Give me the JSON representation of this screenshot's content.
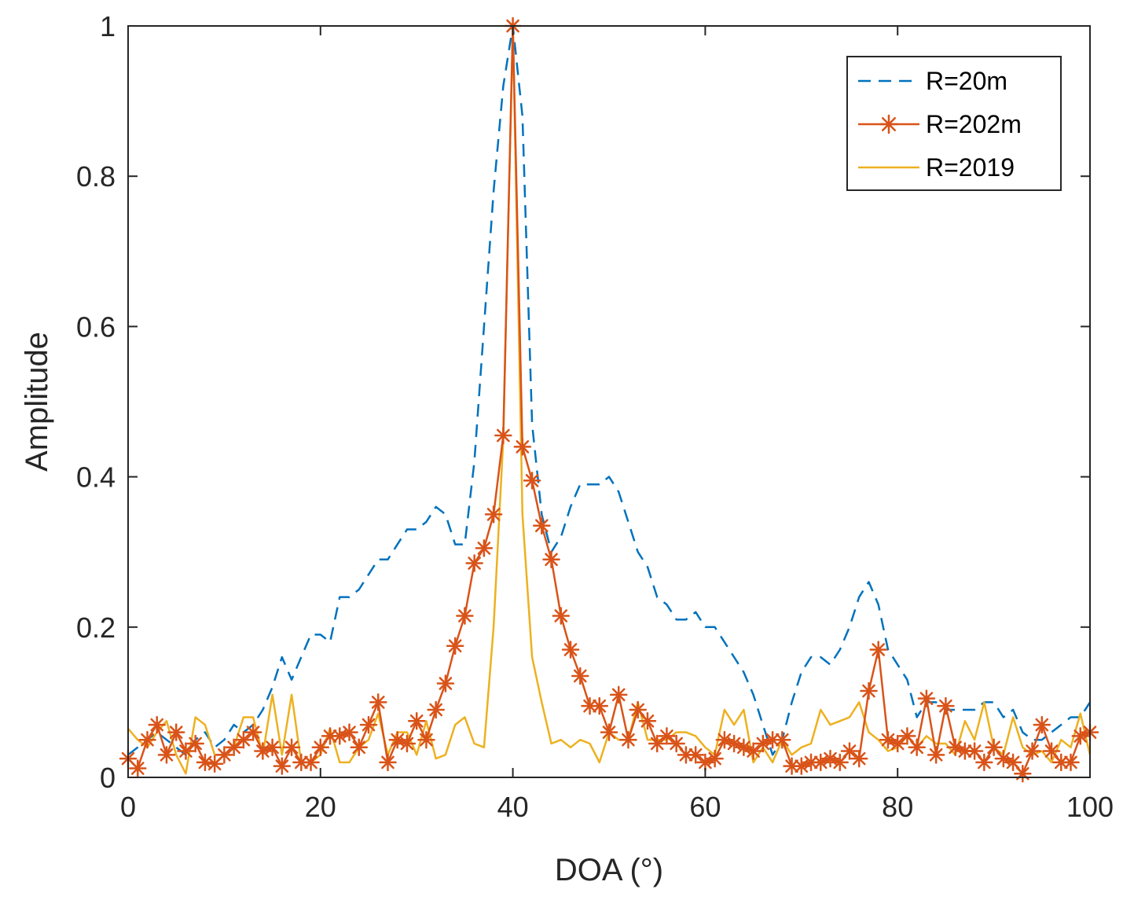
{
  "chart_data": {
    "type": "line",
    "title": "",
    "xlabel": "DOA (°)",
    "ylabel": "Amplitude",
    "xlim": [
      0,
      100
    ],
    "ylim": [
      0,
      1
    ],
    "xticks": [
      0,
      20,
      40,
      60,
      80,
      100
    ],
    "yticks": [
      0,
      0.2,
      0.4,
      0.6,
      0.8,
      1
    ],
    "xtick_labels": [
      "0",
      "20",
      "40",
      "60",
      "80",
      "100"
    ],
    "ytick_labels": [
      "0",
      "0.2",
      "0.4",
      "0.6",
      "0.8",
      "1"
    ],
    "grid": false,
    "legend_position": "top-right",
    "series": [
      {
        "name": "R=20m",
        "color": "#0072BD",
        "line_style": "dashed",
        "marker": "none",
        "x": [
          0,
          1,
          2,
          3,
          4,
          5,
          6,
          7,
          8,
          9,
          10,
          11,
          12,
          13,
          14,
          15,
          16,
          17,
          18,
          19,
          20,
          21,
          22,
          23,
          24,
          25,
          26,
          27,
          28,
          29,
          30,
          31,
          32,
          33,
          34,
          35,
          36,
          37,
          38,
          39,
          40,
          41,
          42,
          43,
          44,
          45,
          46,
          47,
          48,
          49,
          50,
          51,
          52,
          53,
          54,
          55,
          56,
          57,
          58,
          59,
          60,
          61,
          62,
          63,
          64,
          65,
          66,
          67,
          68,
          69,
          70,
          71,
          72,
          73,
          74,
          75,
          76,
          77,
          78,
          79,
          80,
          81,
          82,
          83,
          84,
          85,
          86,
          87,
          88,
          89,
          90,
          91,
          92,
          93,
          94,
          95,
          96,
          97,
          98,
          99,
          100
        ],
        "values": [
          0.03,
          0.04,
          0.05,
          0.06,
          0.05,
          0.04,
          0.03,
          0.05,
          0.06,
          0.04,
          0.05,
          0.07,
          0.06,
          0.07,
          0.09,
          0.12,
          0.16,
          0.13,
          0.16,
          0.19,
          0.19,
          0.18,
          0.24,
          0.24,
          0.25,
          0.27,
          0.29,
          0.29,
          0.31,
          0.33,
          0.33,
          0.34,
          0.36,
          0.35,
          0.31,
          0.31,
          0.42,
          0.6,
          0.78,
          0.92,
          1.0,
          0.88,
          0.47,
          0.35,
          0.3,
          0.32,
          0.36,
          0.39,
          0.39,
          0.39,
          0.4,
          0.38,
          0.34,
          0.3,
          0.28,
          0.24,
          0.23,
          0.21,
          0.21,
          0.22,
          0.2,
          0.2,
          0.18,
          0.16,
          0.14,
          0.11,
          0.07,
          0.03,
          0.05,
          0.1,
          0.14,
          0.16,
          0.16,
          0.15,
          0.17,
          0.2,
          0.24,
          0.26,
          0.23,
          0.17,
          0.15,
          0.13,
          0.08,
          0.1,
          0.1,
          0.09,
          0.09,
          0.09,
          0.09,
          0.1,
          0.1,
          0.08,
          0.09,
          0.06,
          0.05,
          0.05,
          0.06,
          0.07,
          0.08,
          0.08,
          0.1
        ]
      },
      {
        "name": "R=202m",
        "color": "#D95319",
        "line_style": "solid",
        "marker": "asterisk",
        "x": [
          0,
          1,
          2,
          3,
          4,
          5,
          6,
          7,
          8,
          9,
          10,
          11,
          12,
          13,
          14,
          15,
          16,
          17,
          18,
          19,
          20,
          21,
          22,
          23,
          24,
          25,
          26,
          27,
          28,
          29,
          30,
          31,
          32,
          33,
          34,
          35,
          36,
          37,
          38,
          39,
          40,
          41,
          42,
          43,
          44,
          45,
          46,
          47,
          48,
          49,
          50,
          51,
          52,
          53,
          54,
          55,
          56,
          57,
          58,
          59,
          60,
          61,
          62,
          63,
          64,
          65,
          66,
          67,
          68,
          69,
          70,
          71,
          72,
          73,
          74,
          75,
          76,
          77,
          78,
          79,
          80,
          81,
          82,
          83,
          84,
          85,
          86,
          87,
          88,
          89,
          90,
          91,
          92,
          93,
          94,
          95,
          96,
          97,
          98,
          99,
          100
        ],
        "values": [
          0.025,
          0.012,
          0.05,
          0.07,
          0.03,
          0.06,
          0.035,
          0.045,
          0.02,
          0.018,
          0.03,
          0.04,
          0.05,
          0.06,
          0.035,
          0.04,
          0.015,
          0.04,
          0.02,
          0.02,
          0.04,
          0.055,
          0.055,
          0.06,
          0.04,
          0.07,
          0.1,
          0.02,
          0.05,
          0.045,
          0.075,
          0.05,
          0.09,
          0.125,
          0.175,
          0.215,
          0.285,
          0.305,
          0.35,
          0.455,
          1.0,
          0.44,
          0.395,
          0.335,
          0.29,
          0.215,
          0.17,
          0.135,
          0.095,
          0.095,
          0.06,
          0.11,
          0.05,
          0.09,
          0.075,
          0.045,
          0.055,
          0.045,
          0.03,
          0.03,
          0.02,
          0.025,
          0.05,
          0.045,
          0.04,
          0.035,
          0.045,
          0.05,
          0.05,
          0.015,
          0.015,
          0.02,
          0.02,
          0.025,
          0.02,
          0.035,
          0.025,
          0.115,
          0.17,
          0.05,
          0.045,
          0.055,
          0.04,
          0.105,
          0.03,
          0.095,
          0.04,
          0.035,
          0.035,
          0.02,
          0.04,
          0.025,
          0.02,
          0.005,
          0.035,
          0.07,
          0.035,
          0.02,
          0.02,
          0.055,
          0.06
        ]
      },
      {
        "name": "R=2019",
        "color": "#EDB120",
        "line_style": "solid",
        "marker": "none",
        "x": [
          0,
          1,
          2,
          3,
          4,
          5,
          6,
          7,
          8,
          9,
          10,
          11,
          12,
          13,
          14,
          15,
          16,
          17,
          18,
          19,
          20,
          21,
          22,
          23,
          24,
          25,
          26,
          27,
          28,
          29,
          30,
          31,
          32,
          33,
          34,
          35,
          36,
          37,
          38,
          39,
          40,
          41,
          42,
          43,
          44,
          45,
          46,
          47,
          48,
          49,
          50,
          51,
          52,
          53,
          54,
          55,
          56,
          57,
          58,
          59,
          60,
          61,
          62,
          63,
          64,
          65,
          66,
          67,
          68,
          69,
          70,
          71,
          72,
          73,
          74,
          75,
          76,
          77,
          78,
          79,
          80,
          81,
          82,
          83,
          84,
          85,
          86,
          87,
          88,
          89,
          90,
          91,
          92,
          93,
          94,
          95,
          96,
          97,
          98,
          99,
          100
        ],
        "values": [
          0.065,
          0.05,
          0.04,
          0.06,
          0.075,
          0.03,
          0.005,
          0.08,
          0.07,
          0.03,
          0.03,
          0.04,
          0.08,
          0.08,
          0.03,
          0.11,
          0.03,
          0.11,
          0.02,
          0.02,
          0.03,
          0.065,
          0.02,
          0.02,
          0.04,
          0.05,
          0.085,
          0.03,
          0.06,
          0.06,
          0.03,
          0.075,
          0.025,
          0.03,
          0.07,
          0.08,
          0.045,
          0.04,
          0.2,
          0.45,
          1.0,
          0.35,
          0.16,
          0.1,
          0.045,
          0.05,
          0.04,
          0.05,
          0.045,
          0.02,
          0.06,
          0.05,
          0.05,
          0.1,
          0.05,
          0.05,
          0.05,
          0.06,
          0.06,
          0.055,
          0.04,
          0.03,
          0.09,
          0.07,
          0.09,
          0.02,
          0.04,
          0.02,
          0.05,
          0.03,
          0.04,
          0.045,
          0.09,
          0.07,
          0.075,
          0.08,
          0.1,
          0.06,
          0.05,
          0.035,
          0.04,
          0.055,
          0.04,
          0.055,
          0.045,
          0.045,
          0.03,
          0.075,
          0.05,
          0.1,
          0.04,
          0.03,
          0.08,
          0.04,
          0.03,
          0.035,
          0.02,
          0.05,
          0.04,
          0.085,
          0.03
        ]
      }
    ]
  }
}
